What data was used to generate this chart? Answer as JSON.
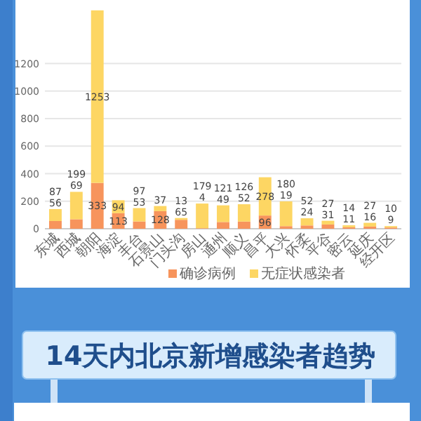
{
  "chart_data": {
    "type": "bar",
    "stacked": true,
    "categories": [
      "东城",
      "西城",
      "朝阳",
      "海淀",
      "丰台",
      "石景山",
      "门头沟",
      "房山",
      "通州",
      "顺义",
      "昌平",
      "大兴",
      "怀柔",
      "平谷",
      "密云",
      "延庆",
      "经开区"
    ],
    "series": [
      {
        "name": "确诊病例",
        "color": "#f7945c",
        "values": [
          56,
          69,
          333,
          113,
          53,
          128,
          65,
          4,
          49,
          52,
          96,
          19,
          24,
          31,
          11,
          16,
          9
        ]
      },
      {
        "name": "无症状感染者",
        "color": "#fdd663",
        "values": [
          87,
          199,
          1253,
          94,
          97,
          37,
          13,
          179,
          121,
          126,
          278,
          180,
          52,
          27,
          14,
          27,
          10
        ]
      }
    ],
    "ylim": [
      0,
      1600
    ],
    "yticks": [
      0,
      200,
      400,
      600,
      800,
      1000,
      1200
    ],
    "grid": "y",
    "data_labels": true,
    "legend": "bottom",
    "annotations": [
      "14天内北京新增感染者趋势"
    ]
  }
}
